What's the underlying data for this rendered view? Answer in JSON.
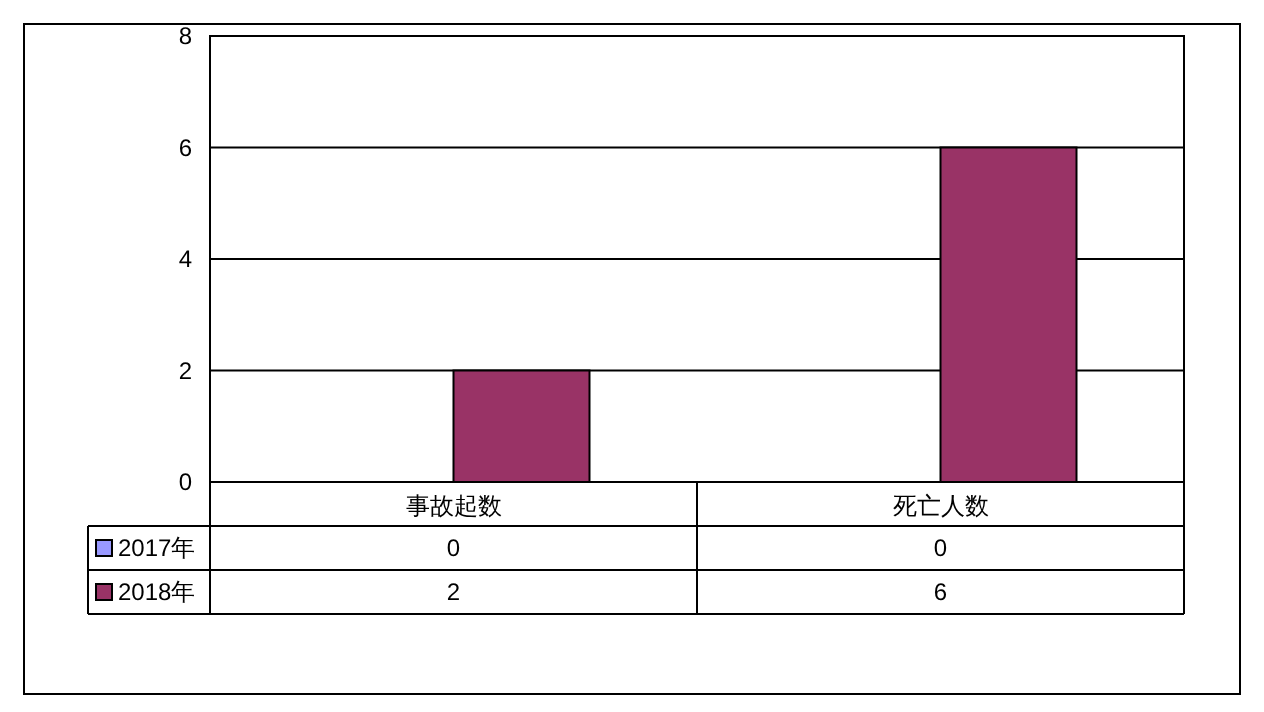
{
  "chart_data": {
    "type": "bar",
    "categories": [
      "事故起数",
      "死亡人数"
    ],
    "series": [
      {
        "name": "2017年",
        "color": "#9999ff",
        "values": [
          0,
          0
        ]
      },
      {
        "name": "2018年",
        "color": "#993366",
        "values": [
          2,
          6
        ]
      }
    ],
    "ylim": [
      0,
      8
    ],
    "yticks": [
      0,
      2,
      4,
      6,
      8
    ],
    "grid": "y",
    "legend": "bottom left",
    "data_labels": true
  }
}
